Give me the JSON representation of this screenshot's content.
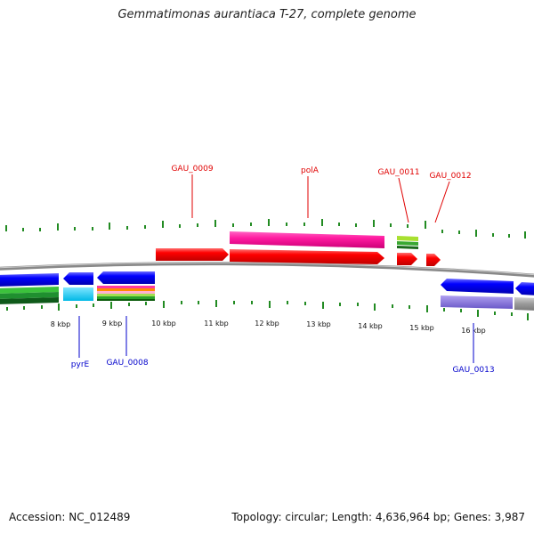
{
  "header": {
    "title": "Gemmatimonas aurantiaca T-27, complete genome"
  },
  "footer": {
    "accession": "Accession: NC_012489",
    "topology": "Topology: circular; Length: 4,636,964 bp; Genes: 3,987"
  },
  "scale_labels": [
    "8 kbp",
    "9 kbp",
    "10 kbp",
    "11 kbp",
    "12 kbp",
    "13 kbp",
    "14 kbp",
    "15 kbp",
    "16 kbp"
  ],
  "top_labels": [
    "GAU_0009",
    "polA",
    "GAU_0011",
    "GAU_0012"
  ],
  "bottom_labels": [
    "pyrE",
    "GAU_0008",
    "GAU_0013"
  ],
  "colors": {
    "forward_cds": "#ff0000",
    "reverse_cds": "#0000ff",
    "forward_label": "#e00000",
    "reverse_label": "#0000cc",
    "tick": "#228b22",
    "backbone": "#888888"
  }
}
